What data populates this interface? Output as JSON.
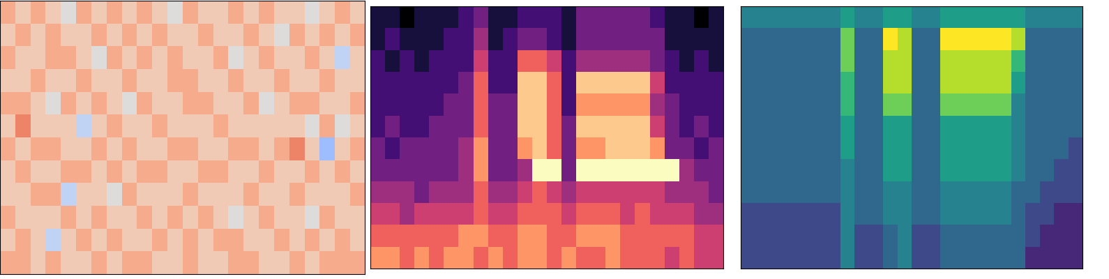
{
  "chart_data": [
    {
      "type": "heatmap",
      "color": "coolwarm",
      "tick_labels": false,
      "zlim": [
        -5,
        5
      ],
      "cells": [
        [
          2,
          1,
          2,
          1,
          0,
          2,
          1,
          2,
          1,
          2,
          1,
          0,
          2,
          1,
          1,
          2,
          1,
          2,
          1,
          1,
          0,
          1,
          2,
          1
        ],
        [
          1,
          2,
          1,
          2,
          1,
          1,
          2,
          1,
          2,
          1,
          2,
          1,
          1,
          2,
          1,
          1,
          2,
          1,
          0,
          2,
          1,
          2,
          1,
          2
        ],
        [
          2,
          1,
          1,
          2,
          2,
          1,
          0,
          2,
          1,
          2,
          1,
          2,
          1,
          1,
          2,
          0,
          1,
          2,
          1,
          1,
          2,
          1,
          -1,
          1
        ],
        [
          1,
          1,
          2,
          1,
          1,
          2,
          1,
          1,
          2,
          1,
          1,
          2,
          2,
          1,
          1,
          2,
          1,
          1,
          2,
          1,
          1,
          2,
          1,
          1
        ],
        [
          2,
          2,
          1,
          0,
          2,
          1,
          2,
          1,
          0,
          2,
          1,
          1,
          2,
          2,
          1,
          1,
          2,
          0,
          1,
          2,
          2,
          1,
          1,
          2
        ],
        [
          1,
          3,
          1,
          1,
          1,
          -1,
          1,
          2,
          1,
          1,
          2,
          1,
          1,
          1,
          2,
          1,
          1,
          1,
          1,
          1,
          0,
          2,
          0,
          1
        ],
        [
          2,
          1,
          2,
          2,
          1,
          1,
          2,
          1,
          2,
          1,
          1,
          2,
          2,
          1,
          1,
          2,
          2,
          1,
          2,
          3,
          1,
          -2,
          1,
          2
        ],
        [
          1,
          2,
          1,
          1,
          2,
          2,
          1,
          2,
          1,
          2,
          2,
          1,
          1,
          2,
          2,
          1,
          1,
          2,
          1,
          1,
          2,
          1,
          2,
          1
        ],
        [
          1,
          1,
          2,
          2,
          -1,
          1,
          1,
          0,
          2,
          1,
          1,
          1,
          2,
          1,
          1,
          1,
          2,
          1,
          1,
          2,
          1,
          1,
          1,
          2
        ],
        [
          2,
          1,
          1,
          1,
          2,
          1,
          2,
          1,
          1,
          2,
          1,
          2,
          1,
          2,
          1,
          0,
          1,
          2,
          1,
          1,
          0,
          2,
          1,
          1
        ],
        [
          1,
          2,
          1,
          -1,
          1,
          2,
          1,
          2,
          1,
          1,
          2,
          1,
          2,
          1,
          2,
          2,
          1,
          1,
          2,
          1,
          2,
          1,
          2,
          1
        ],
        [
          2,
          2,
          1,
          2,
          1,
          1,
          2,
          1,
          2,
          2,
          1,
          1,
          2,
          1,
          1,
          2,
          2,
          1,
          1,
          2,
          1,
          2,
          2,
          2
        ]
      ]
    },
    {
      "type": "heatmap",
      "color": "magma",
      "tick_labels": false,
      "zlim": [
        0,
        9
      ],
      "cells": [
        [
          1,
          1,
          0,
          1,
          1,
          1,
          2,
          3,
          1,
          1,
          2,
          2,
          2,
          1,
          3,
          3,
          3,
          3,
          3,
          2,
          1,
          1,
          0,
          1
        ],
        [
          1,
          2,
          1,
          1,
          1,
          2,
          2,
          4,
          1,
          2,
          3,
          3,
          2,
          1,
          3,
          3,
          3,
          3,
          3,
          3,
          1,
          1,
          1,
          1
        ],
        [
          2,
          1,
          2,
          1,
          2,
          2,
          2,
          5,
          2,
          2,
          6,
          6,
          5,
          2,
          4,
          4,
          4,
          4,
          4,
          3,
          2,
          1,
          2,
          1
        ],
        [
          2,
          2,
          2,
          2,
          2,
          2,
          3,
          6,
          2,
          2,
          8,
          8,
          6,
          2,
          8,
          8,
          8,
          8,
          8,
          5,
          2,
          2,
          2,
          2
        ],
        [
          2,
          2,
          2,
          2,
          2,
          3,
          3,
          6,
          3,
          3,
          8,
          8,
          6,
          2,
          7,
          7,
          7,
          7,
          7,
          4,
          3,
          2,
          2,
          2
        ],
        [
          2,
          3,
          2,
          2,
          3,
          3,
          3,
          6,
          3,
          3,
          8,
          8,
          6,
          3,
          8,
          8,
          8,
          8,
          8,
          5,
          3,
          2,
          3,
          2
        ],
        [
          3,
          2,
          3,
          3,
          3,
          3,
          4,
          7,
          3,
          3,
          7,
          8,
          6,
          3,
          7,
          7,
          8,
          8,
          8,
          7,
          3,
          3,
          2,
          3
        ],
        [
          3,
          3,
          3,
          3,
          3,
          3,
          4,
          7,
          3,
          3,
          4,
          9,
          9,
          3,
          9,
          9,
          9,
          9,
          9,
          9,
          9,
          4,
          3,
          3
        ],
        [
          4,
          4,
          4,
          3,
          4,
          4,
          4,
          6,
          4,
          4,
          5,
          6,
          5,
          4,
          5,
          5,
          5,
          5,
          5,
          5,
          4,
          4,
          4,
          3
        ],
        [
          5,
          5,
          4,
          5,
          5,
          5,
          5,
          6,
          5,
          5,
          6,
          6,
          6,
          5,
          6,
          6,
          6,
          5,
          6,
          5,
          5,
          5,
          4,
          4
        ],
        [
          6,
          6,
          6,
          6,
          6,
          6,
          7,
          7,
          6,
          6,
          7,
          7,
          6,
          6,
          7,
          7,
          7,
          6,
          6,
          6,
          6,
          6,
          5,
          5
        ],
        [
          7,
          7,
          6,
          7,
          6,
          7,
          7,
          6,
          7,
          6,
          7,
          7,
          6,
          7,
          6,
          6,
          7,
          6,
          6,
          6,
          5,
          6,
          5,
          5
        ]
      ]
    },
    {
      "type": "heatmap",
      "color": "viridis",
      "tick_labels": false,
      "zlim": [
        0,
        9
      ],
      "cells": [
        [
          4,
          4,
          4,
          4,
          4,
          4,
          4,
          5,
          4,
          4,
          5,
          5,
          4,
          4,
          5,
          5,
          5,
          5,
          5,
          5,
          4,
          4,
          4,
          4
        ],
        [
          3,
          3,
          3,
          3,
          3,
          3,
          3,
          7,
          3,
          3,
          9,
          8,
          3,
          3,
          9,
          9,
          9,
          9,
          9,
          8,
          3,
          3,
          3,
          3
        ],
        [
          3,
          3,
          3,
          3,
          3,
          3,
          3,
          7,
          3,
          3,
          8,
          8,
          3,
          3,
          8,
          8,
          8,
          8,
          8,
          6,
          3,
          3,
          3,
          3
        ],
        [
          3,
          3,
          3,
          3,
          3,
          3,
          3,
          6,
          3,
          3,
          8,
          8,
          3,
          3,
          8,
          8,
          8,
          8,
          8,
          5,
          3,
          3,
          3,
          3
        ],
        [
          3,
          3,
          3,
          3,
          3,
          3,
          3,
          6,
          3,
          3,
          7,
          7,
          3,
          3,
          7,
          7,
          7,
          7,
          7,
          4,
          3,
          3,
          3,
          3
        ],
        [
          3,
          3,
          3,
          3,
          3,
          3,
          3,
          5,
          3,
          3,
          5,
          5,
          3,
          3,
          5,
          5,
          5,
          5,
          5,
          4,
          3,
          3,
          3,
          3
        ],
        [
          3,
          3,
          3,
          3,
          3,
          3,
          3,
          5,
          3,
          3,
          5,
          5,
          3,
          3,
          5,
          5,
          5,
          5,
          5,
          4,
          3,
          3,
          3,
          2
        ],
        [
          3,
          3,
          3,
          3,
          3,
          3,
          3,
          4,
          3,
          3,
          5,
          5,
          3,
          3,
          5,
          5,
          5,
          5,
          5,
          4,
          3,
          3,
          2,
          2
        ],
        [
          3,
          3,
          3,
          3,
          3,
          3,
          3,
          4,
          3,
          3,
          4,
          4,
          3,
          3,
          4,
          4,
          4,
          4,
          4,
          3,
          3,
          2,
          2,
          2
        ],
        [
          2,
          2,
          2,
          2,
          2,
          2,
          2,
          4,
          3,
          3,
          4,
          4,
          3,
          3,
          4,
          4,
          4,
          4,
          4,
          3,
          2,
          2,
          1,
          1
        ],
        [
          2,
          2,
          2,
          2,
          2,
          2,
          2,
          4,
          2,
          2,
          3,
          4,
          2,
          2,
          3,
          3,
          3,
          3,
          3,
          3,
          2,
          1,
          1,
          1
        ],
        [
          2,
          2,
          2,
          2,
          2,
          2,
          2,
          4,
          2,
          2,
          3,
          4,
          2,
          2,
          3,
          3,
          3,
          3,
          3,
          3,
          1,
          1,
          1,
          1
        ]
      ]
    }
  ]
}
